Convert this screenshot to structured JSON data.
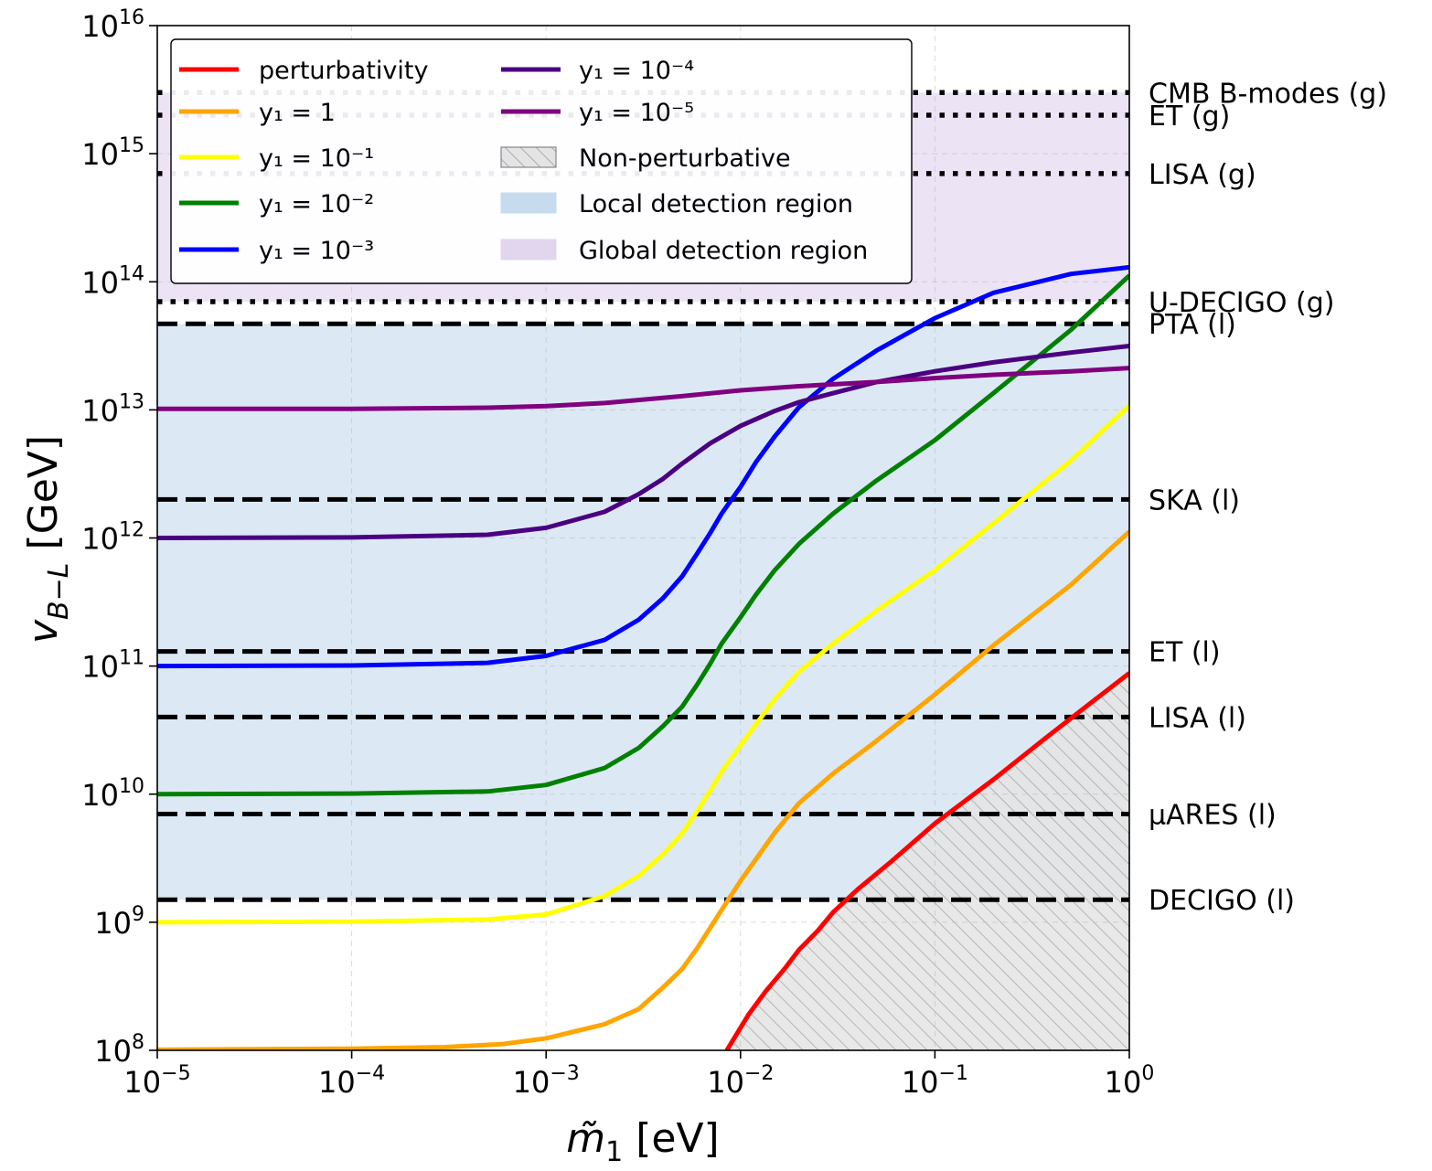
{
  "chart_data": {
    "type": "line",
    "xscale": "log",
    "yscale": "log",
    "xlim": [
      1e-05,
      1
    ],
    "ylim": [
      100000000.0,
      1e+16
    ],
    "grid": true,
    "legend_position": "top-left",
    "xlabel": "m̃₁ [eV]",
    "ylabel": "v_{B−L} [GeV]",
    "x_ticks": [
      {
        "base": "10",
        "exp": "−5"
      },
      {
        "base": "10",
        "exp": "−4"
      },
      {
        "base": "10",
        "exp": "−3"
      },
      {
        "base": "10",
        "exp": "−2"
      },
      {
        "base": "10",
        "exp": "−1"
      },
      {
        "base": "10",
        "exp": "0"
      }
    ],
    "y_ticks": [
      {
        "base": "10",
        "exp": "8"
      },
      {
        "base": "10",
        "exp": "9"
      },
      {
        "base": "10",
        "exp": "10"
      },
      {
        "base": "10",
        "exp": "11"
      },
      {
        "base": "10",
        "exp": "12"
      },
      {
        "base": "10",
        "exp": "13"
      },
      {
        "base": "10",
        "exp": "14"
      },
      {
        "base": "10",
        "exp": "15"
      },
      {
        "base": "10",
        "exp": "16"
      }
    ],
    "series": [
      {
        "name": "perturbativity",
        "color": "#ff0000",
        "points": [
          [
            0.0085,
            100000000.0
          ],
          [
            0.011,
            190000000.0
          ],
          [
            0.0135,
            290000000.0
          ],
          [
            0.017,
            440000000.0
          ],
          [
            0.02,
            610000000.0
          ],
          [
            0.025,
            860000000.0
          ],
          [
            0.03,
            1200000000.0
          ],
          [
            0.04,
            1800000000.0
          ],
          [
            0.06,
            3000000000.0
          ],
          [
            0.1,
            5900000000.0
          ],
          [
            0.2,
            13000000000.0
          ],
          [
            0.4,
            30000000000.0
          ],
          [
            0.7,
            58000000000.0
          ],
          [
            1.0,
            88000000000.0
          ]
        ]
      },
      {
        "name": "y₁ = 1",
        "color": "#ffa500",
        "points": [
          [
            1e-05,
            101000000.0
          ],
          [
            0.0001,
            103000000.0
          ],
          [
            0.0003,
            106000000.0
          ],
          [
            0.0006,
            112000000.0
          ],
          [
            0.001,
            124000000.0
          ],
          [
            0.002,
            160000000.0
          ],
          [
            0.003,
            210000000.0
          ],
          [
            0.004,
            310000000.0
          ],
          [
            0.005,
            430000000.0
          ],
          [
            0.006,
            630000000.0
          ],
          [
            0.007,
            910000000.0
          ],
          [
            0.008,
            1250000000.0
          ],
          [
            0.01,
            2100000000.0
          ],
          [
            0.012,
            3100000000.0
          ],
          [
            0.015,
            5000000000.0
          ],
          [
            0.02,
            8500000000.0
          ],
          [
            0.03,
            14500000000.0
          ],
          [
            0.05,
            26000000000.0
          ],
          [
            0.1,
            60000000000.0
          ],
          [
            0.2,
            145000000000.0
          ],
          [
            0.5,
            430000000000.0
          ],
          [
            1.0,
            1120000000000.0
          ]
        ]
      },
      {
        "name": "y₁ = 10⁻¹",
        "color": "#ffff00",
        "points": [
          [
            1e-05,
            1000000000.0
          ],
          [
            0.0001,
            1010000000.0
          ],
          [
            0.0005,
            1050000000.0
          ],
          [
            0.001,
            1150000000.0
          ],
          [
            0.002,
            1600000000.0
          ],
          [
            0.003,
            2300000000.0
          ],
          [
            0.004,
            3400000000.0
          ],
          [
            0.005,
            4900000000.0
          ],
          [
            0.006,
            7400000000.0
          ],
          [
            0.007,
            10700000000.0
          ],
          [
            0.008,
            15000000000.0
          ],
          [
            0.01,
            24000000000.0
          ],
          [
            0.012,
            35000000000.0
          ],
          [
            0.015,
            55000000000.0
          ],
          [
            0.02,
            90000000000.0
          ],
          [
            0.03,
            150000000000.0
          ],
          [
            0.05,
            270000000000.0
          ],
          [
            0.1,
            560000000000.0
          ],
          [
            0.2,
            1300000000000.0
          ],
          [
            0.5,
            4000000000000.0
          ],
          [
            1.0,
            10800000000000.0
          ]
        ]
      },
      {
        "name": "y₁ = 10⁻²",
        "color": "#008000",
        "points": [
          [
            1e-05,
            10000000000.0
          ],
          [
            0.0001,
            10100000000.0
          ],
          [
            0.0005,
            10500000000.0
          ],
          [
            0.001,
            11800000000.0
          ],
          [
            0.002,
            16000000000.0
          ],
          [
            0.003,
            23000000000.0
          ],
          [
            0.004,
            34000000000.0
          ],
          [
            0.005,
            48000000000.0
          ],
          [
            0.006,
            72000000000.0
          ],
          [
            0.007,
            105000000000.0
          ],
          [
            0.008,
            150000000000.0
          ],
          [
            0.01,
            240000000000.0
          ],
          [
            0.012,
            360000000000.0
          ],
          [
            0.015,
            560000000000.0
          ],
          [
            0.02,
            900000000000.0
          ],
          [
            0.03,
            1550000000000.0
          ],
          [
            0.05,
            2800000000000.0
          ],
          [
            0.1,
            5800000000000.0
          ],
          [
            0.2,
            13500000000000.0
          ],
          [
            0.5,
            42000000000000.0
          ],
          [
            1.0,
            112000000000000.0
          ]
        ]
      },
      {
        "name": "y₁ = 10⁻³",
        "color": "#0000ff",
        "points": [
          [
            1e-05,
            100000000000.0
          ],
          [
            0.0001,
            101000000000.0
          ],
          [
            0.0005,
            106000000000.0
          ],
          [
            0.001,
            120000000000.0
          ],
          [
            0.002,
            160000000000.0
          ],
          [
            0.003,
            230000000000.0
          ],
          [
            0.004,
            340000000000.0
          ],
          [
            0.005,
            500000000000.0
          ],
          [
            0.006,
            760000000000.0
          ],
          [
            0.007,
            1100000000000.0
          ],
          [
            0.008,
            1550000000000.0
          ],
          [
            0.01,
            2500000000000.0
          ],
          [
            0.012,
            3900000000000.0
          ],
          [
            0.015,
            6200000000000.0
          ],
          [
            0.02,
            10500000000000.0
          ],
          [
            0.03,
            17500000000000.0
          ],
          [
            0.05,
            29000000000000.0
          ],
          [
            0.1,
            52000000000000.0
          ],
          [
            0.2,
            82000000000000.0
          ],
          [
            0.5,
            115000000000000.0
          ],
          [
            1.0,
            130000000000000.0
          ]
        ]
      },
      {
        "name": "y₁ = 10⁻⁴",
        "color": "#4b0082",
        "points": [
          [
            1e-05,
            1000000000000.0
          ],
          [
            0.0001,
            1010000000000.0
          ],
          [
            0.0005,
            1060000000000.0
          ],
          [
            0.001,
            1200000000000.0
          ],
          [
            0.002,
            1600000000000.0
          ],
          [
            0.003,
            2200000000000.0
          ],
          [
            0.004,
            2900000000000.0
          ],
          [
            0.005,
            3800000000000.0
          ],
          [
            0.007,
            5500000000000.0
          ],
          [
            0.01,
            7500000000000.0
          ],
          [
            0.015,
            9800000000000.0
          ],
          [
            0.02,
            11500000000000.0
          ],
          [
            0.03,
            13500000000000.0
          ],
          [
            0.05,
            16500000000000.0
          ],
          [
            0.1,
            20000000000000.0
          ],
          [
            0.2,
            23500000000000.0
          ],
          [
            0.5,
            28000000000000.0
          ],
          [
            1.0,
            31500000000000.0
          ]
        ]
      },
      {
        "name": "y₁ = 10⁻⁵",
        "color": "#800080",
        "points": [
          [
            1e-05,
            10200000000000.0
          ],
          [
            0.0001,
            10200000000000.0
          ],
          [
            0.0005,
            10400000000000.0
          ],
          [
            0.001,
            10700000000000.0
          ],
          [
            0.002,
            11300000000000.0
          ],
          [
            0.005,
            12800000000000.0
          ],
          [
            0.01,
            14200000000000.0
          ],
          [
            0.02,
            15300000000000.0
          ],
          [
            0.05,
            16500000000000.0
          ],
          [
            0.1,
            17700000000000.0
          ],
          [
            0.2,
            18800000000000.0
          ],
          [
            0.5,
            20000000000000.0
          ],
          [
            1.0,
            21200000000000.0
          ]
        ]
      }
    ],
    "regions": {
      "non_perturbative": {
        "name": "Non-perturbative"
      },
      "local": {
        "name": "Local detection region",
        "range": [
          1500000000.0,
          47000000000000.0
        ]
      },
      "global": {
        "name": "Global detection region",
        "range": [
          70000000000000.0,
          3000000000000000.0
        ]
      }
    },
    "reference_lines": [
      {
        "label": "CMB B-modes (g)",
        "value": 3000000000000000.0,
        "style": "dotted"
      },
      {
        "label": "ET (g)",
        "value": 2000000000000000.0,
        "style": "dotted"
      },
      {
        "label": "LISA (g)",
        "value": 700000000000000.0,
        "style": "dotted"
      },
      {
        "label": "U-DECIGO (g)",
        "value": 70000000000000.0,
        "style": "dotted"
      },
      {
        "label": "PTA (l)",
        "value": 47000000000000.0,
        "style": "dashed"
      },
      {
        "label": "SKA (l)",
        "value": 2000000000000.0,
        "style": "dashed"
      },
      {
        "label": "ET (l)",
        "value": 130000000000.0,
        "style": "dashed"
      },
      {
        "label": "LISA (l)",
        "value": 40000000000.0,
        "style": "dashed"
      },
      {
        "label": "µARES (l)",
        "value": 7000000000.0,
        "style": "dashed"
      },
      {
        "label": "DECIGO (l)",
        "value": 1500000000.0,
        "style": "dashed"
      }
    ],
    "legend": [
      {
        "label": "perturbativity",
        "kind": "line",
        "color": "#ff0000"
      },
      {
        "label": "y₁ = 1",
        "kind": "line",
        "color": "#ffa500"
      },
      {
        "label": "y₁ = 10⁻¹",
        "kind": "line",
        "color": "#ffff00"
      },
      {
        "label": "y₁ = 10⁻²",
        "kind": "line",
        "color": "#008000"
      },
      {
        "label": "y₁ = 10⁻³",
        "kind": "line",
        "color": "#0000ff"
      },
      {
        "label": "y₁ = 10⁻⁴",
        "kind": "line",
        "color": "#4b0082"
      },
      {
        "label": "y₁ = 10⁻⁵",
        "kind": "line",
        "color": "#800080"
      },
      {
        "label": "Non-perturbative",
        "kind": "hatch",
        "color": "#cccccc"
      },
      {
        "label": "Local detection region",
        "kind": "patch",
        "color": "#c6dcee"
      },
      {
        "label": "Global detection region",
        "kind": "patch",
        "color": "#e2d6ef"
      }
    ]
  }
}
